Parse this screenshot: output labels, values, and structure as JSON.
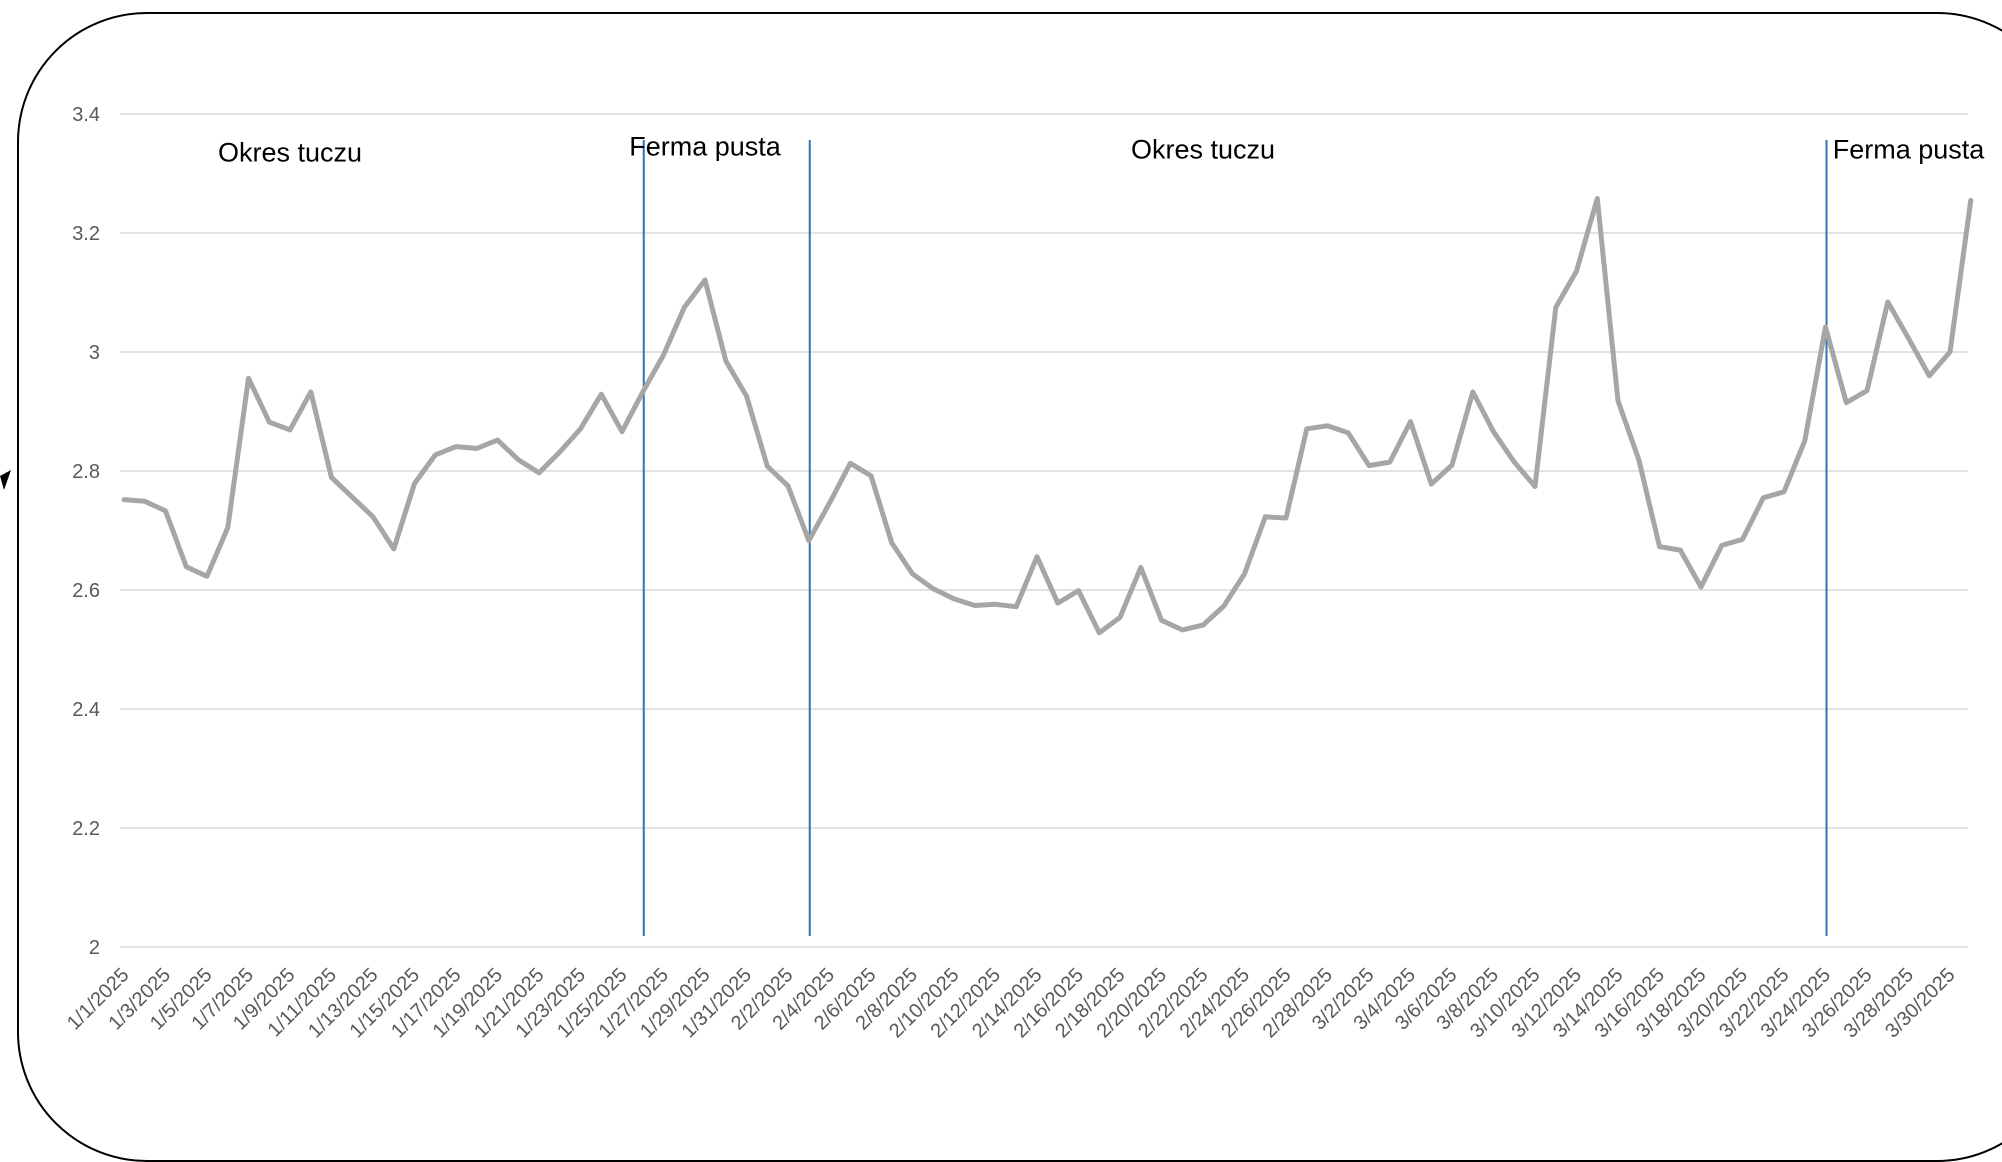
{
  "chart_data": {
    "type": "line",
    "title": "",
    "xlabel": "",
    "ylabel": "",
    "ylim": [
      2,
      3.4
    ],
    "yticks": [
      "2",
      "2.2",
      "2.4",
      "2.6",
      "2.8",
      "3",
      "3.2",
      "3.4"
    ],
    "grid": true,
    "legend": "none",
    "colors": {
      "series": "#a6a6a6",
      "divider": "#2e75b6",
      "gridline": "#d9d9d9",
      "tick": "#595959"
    },
    "x": [
      "1/1/2025",
      "1/2/2025",
      "1/3/2025",
      "1/4/2025",
      "1/5/2025",
      "1/6/2025",
      "1/7/2025",
      "1/8/2025",
      "1/9/2025",
      "1/10/2025",
      "1/11/2025",
      "1/12/2025",
      "1/13/2025",
      "1/14/2025",
      "1/15/2025",
      "1/16/2025",
      "1/17/2025",
      "1/18/2025",
      "1/19/2025",
      "1/20/2025",
      "1/21/2025",
      "1/22/2025",
      "1/23/2025",
      "1/24/2025",
      "1/25/2025",
      "1/26/2025",
      "1/27/2025",
      "1/28/2025",
      "1/29/2025",
      "1/30/2025",
      "1/31/2025",
      "2/1/2025",
      "2/2/2025",
      "2/3/2025",
      "2/4/2025",
      "2/5/2025",
      "2/6/2025",
      "2/7/2025",
      "2/8/2025",
      "2/9/2025",
      "2/10/2025",
      "2/11/2025",
      "2/12/2025",
      "2/13/2025",
      "2/14/2025",
      "2/15/2025",
      "2/16/2025",
      "2/17/2025",
      "2/18/2025",
      "2/19/2025",
      "2/20/2025",
      "2/21/2025",
      "2/22/2025",
      "2/23/2025",
      "2/24/2025",
      "2/25/2025",
      "2/26/2025",
      "2/27/2025",
      "2/28/2025",
      "3/1/2025",
      "3/2/2025",
      "3/3/2025",
      "3/4/2025",
      "3/5/2025",
      "3/6/2025",
      "3/7/2025",
      "3/8/2025",
      "3/9/2025",
      "3/10/2025",
      "3/11/2025",
      "3/12/2025",
      "3/13/2025",
      "3/14/2025",
      "3/15/2025",
      "3/16/2025",
      "3/17/2025",
      "3/18/2025",
      "3/19/2025",
      "3/20/2025",
      "3/21/2025",
      "3/22/2025",
      "3/23/2025",
      "3/24/2025",
      "3/25/2025",
      "3/26/2025",
      "3/27/2025",
      "3/28/2025",
      "3/29/2025",
      "3/30/2025",
      "3/31/2025"
    ],
    "xticks": [
      "1/1/2025",
      "1/3/2025",
      "1/5/2025",
      "1/7/2025",
      "1/9/2025",
      "1/11/2025",
      "1/13/2025",
      "1/15/2025",
      "1/17/2025",
      "1/19/2025",
      "1/21/2025",
      "1/23/2025",
      "1/25/2025",
      "1/27/2025",
      "1/29/2025",
      "1/31/2025",
      "2/2/2025",
      "2/4/2025",
      "2/6/2025",
      "2/8/2025",
      "2/10/2025",
      "2/12/2025",
      "2/14/2025",
      "2/16/2025",
      "2/18/2025",
      "2/20/2025",
      "2/22/2025",
      "2/24/2025",
      "2/26/2025",
      "2/28/2025",
      "3/2/2025",
      "3/4/2025",
      "3/6/2025",
      "3/8/2025",
      "3/10/2025",
      "3/12/2025",
      "3/14/2025",
      "3/16/2025",
      "3/18/2025",
      "3/20/2025",
      "3/22/2025",
      "3/24/2025",
      "3/26/2025",
      "3/28/2025",
      "3/30/2025"
    ],
    "series": [
      {
        "values": [
          2.752,
          2.749,
          2.733,
          2.639,
          2.623,
          2.705,
          2.956,
          2.882,
          2.869,
          2.933,
          2.789,
          2.756,
          2.723,
          2.669,
          2.779,
          2.827,
          2.841,
          2.838,
          2.852,
          2.819,
          2.797,
          2.832,
          2.871,
          2.929,
          2.866,
          2.933,
          2.995,
          3.075,
          3.121,
          2.985,
          2.926,
          2.808,
          2.775,
          2.683,
          2.746,
          2.813,
          2.792,
          2.679,
          2.627,
          2.602,
          2.585,
          2.574,
          2.576,
          2.572,
          2.656,
          2.578,
          2.599,
          2.528,
          2.554,
          2.638,
          2.549,
          2.533,
          2.541,
          2.573,
          2.627,
          2.723,
          2.721,
          2.871,
          2.876,
          2.864,
          2.809,
          2.815,
          2.883,
          2.778,
          2.81,
          2.933,
          2.866,
          2.815,
          2.774,
          3.075,
          3.136,
          3.258,
          2.918,
          2.819,
          2.673,
          2.667,
          2.605,
          2.675,
          2.685,
          2.755,
          2.765,
          2.851,
          3.042,
          2.915,
          2.935,
          3.084,
          3.023,
          2.96,
          3.0,
          3.255
        ]
      }
    ],
    "annotations": [
      {
        "text": "Okres tuczu",
        "x": "1/9/2025",
        "y": 3.335
      },
      {
        "text": "Ferma pusta",
        "x": "1/29/2025",
        "y": 3.345
      },
      {
        "text": "Okres tuczu",
        "x": "2/22/2025",
        "y": 3.34
      },
      {
        "text": "Ferma pusta",
        "x": "3/28/2025",
        "y": 3.34
      }
    ],
    "dividers": [
      "1/26/2025",
      "2/3/2025",
      "3/24/2025"
    ]
  }
}
